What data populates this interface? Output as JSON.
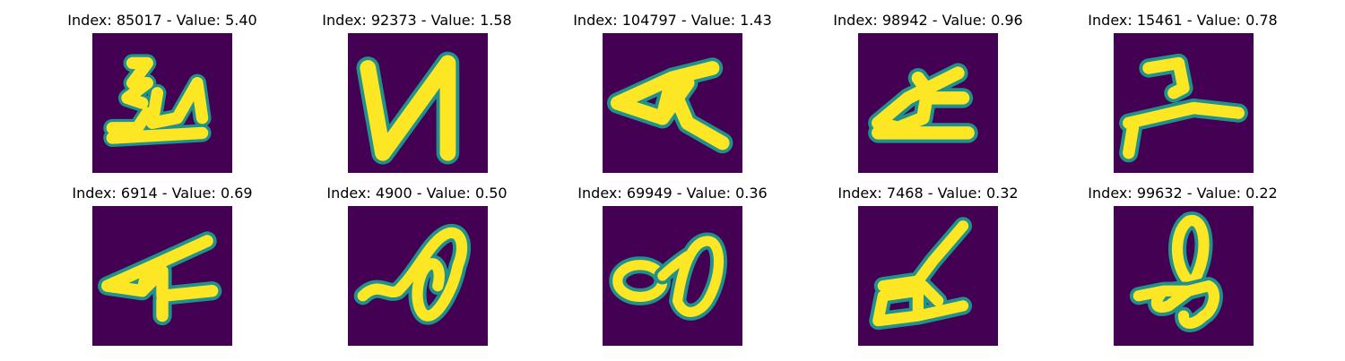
{
  "chart_data": {
    "type": "image_grid",
    "colormap": "viridis",
    "colors": {
      "background": "#440154",
      "edge": "#21918c",
      "stroke": "#fde725"
    },
    "panels": [
      {
        "title": "Index: 85017 - Value: 5.40",
        "index": 85017,
        "value": 5.4
      },
      {
        "title": "Index: 92373 - Value: 1.58",
        "index": 92373,
        "value": 1.58
      },
      {
        "title": "Index: 104797 - Value: 1.43",
        "index": 104797,
        "value": 1.43
      },
      {
        "title": "Index: 98942 - Value: 0.96",
        "index": 98942,
        "value": 0.96
      },
      {
        "title": "Index: 15461 - Value: 0.78",
        "index": 15461,
        "value": 0.78
      },
      {
        "title": "Index: 6914 - Value: 0.69",
        "index": 6914,
        "value": 0.69
      },
      {
        "title": "Index: 4900 - Value: 0.50",
        "index": 4900,
        "value": 0.5
      },
      {
        "title": "Index: 69949 - Value: 0.36",
        "index": 69949,
        "value": 0.36
      },
      {
        "title": "Index: 7468 - Value: 0.32",
        "index": 7468,
        "value": 0.32
      },
      {
        "title": "Index: 99632 - Value: 0.22",
        "index": 99632,
        "value": 0.22
      }
    ]
  }
}
